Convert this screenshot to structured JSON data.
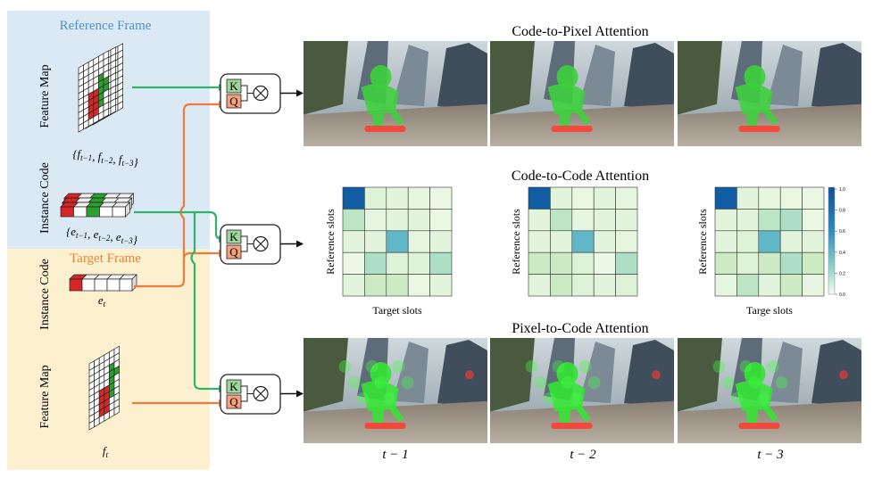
{
  "left_panel": {
    "reference_frame_title": "Reference Frame",
    "target_frame_title": "Target Frame",
    "feature_map_label": "Feature Map",
    "instance_code_label": "Instance Code",
    "ref_feature_caption": "{f_{t−1}, f_{t−2}, f_{t−3}}",
    "ref_code_caption": "{e_{t−1}, e_{t−2}, e_{t−3}}",
    "target_code_caption": "e_t",
    "target_feature_caption": "f_t"
  },
  "attention_blocks": {
    "key_label": "K",
    "query_label": "Q",
    "multiply_symbol": "⊗"
  },
  "sections": {
    "code_to_pixel_title": "Code-to-Pixel Attention",
    "code_to_code_title": "Code-to-Code Attention",
    "pixel_to_code_title": "Pixel-to-Code Attention"
  },
  "heatmaps": [
    {
      "ylabel": "Reference slots",
      "xlabel": "Target slots"
    },
    {
      "ylabel": "Reference slots",
      "xlabel": ""
    },
    {
      "ylabel": "Reference slots",
      "xlabel": "Targe slots"
    }
  ],
  "colorbar": {
    "ticks": [
      "1.0",
      "0.8",
      "0.6",
      "0.4",
      "0.2",
      "0.0"
    ]
  },
  "time_labels": [
    "t − 1",
    "t − 2",
    "t − 3"
  ],
  "colors": {
    "reference_bg": "#dbe9f5",
    "target_bg": "#fdf0cf",
    "reference_title": "#4f8fc9",
    "target_title": "#e8833a",
    "green_arrow": "#2fb36a",
    "orange_arrow": "#ee7a3c",
    "key_box": "#9fd49a",
    "query_box": "#f4a17c"
  },
  "chart_data": [
    {
      "type": "heatmap",
      "x_label": "Target slots",
      "y_label": "Reference slots",
      "value_range": [
        0,
        1
      ],
      "values": [
        [
          0.95,
          0.12,
          0.1,
          0.08,
          0.06
        ],
        [
          0.25,
          0.08,
          0.1,
          0.1,
          0.06
        ],
        [
          0.1,
          0.1,
          0.55,
          0.08,
          0.1
        ],
        [
          0.05,
          0.3,
          0.12,
          0.12,
          0.3
        ],
        [
          0.1,
          0.2,
          0.2,
          0.06,
          0.1
        ]
      ]
    },
    {
      "type": "heatmap",
      "x_label": "",
      "y_label": "Reference slots",
      "value_range": [
        0,
        1
      ],
      "values": [
        [
          0.95,
          0.1,
          0.06,
          0.1,
          0.08
        ],
        [
          0.1,
          0.25,
          0.08,
          0.1,
          0.1
        ],
        [
          0.1,
          0.1,
          0.55,
          0.1,
          0.08
        ],
        [
          0.2,
          0.2,
          0.12,
          0.05,
          0.3
        ],
        [
          0.1,
          0.2,
          0.12,
          0.1,
          0.12
        ]
      ]
    },
    {
      "type": "heatmap",
      "x_label": "Targe slots",
      "y_label": "Reference slots",
      "value_range": [
        0,
        1
      ],
      "values": [
        [
          0.95,
          0.1,
          0.08,
          0.06,
          0.06
        ],
        [
          0.1,
          0.1,
          0.25,
          0.3,
          0.06
        ],
        [
          0.1,
          0.12,
          0.55,
          0.1,
          0.1
        ],
        [
          0.2,
          0.12,
          0.2,
          0.3,
          0.2
        ],
        [
          0.08,
          0.25,
          0.1,
          0.2,
          0.08
        ]
      ]
    }
  ]
}
